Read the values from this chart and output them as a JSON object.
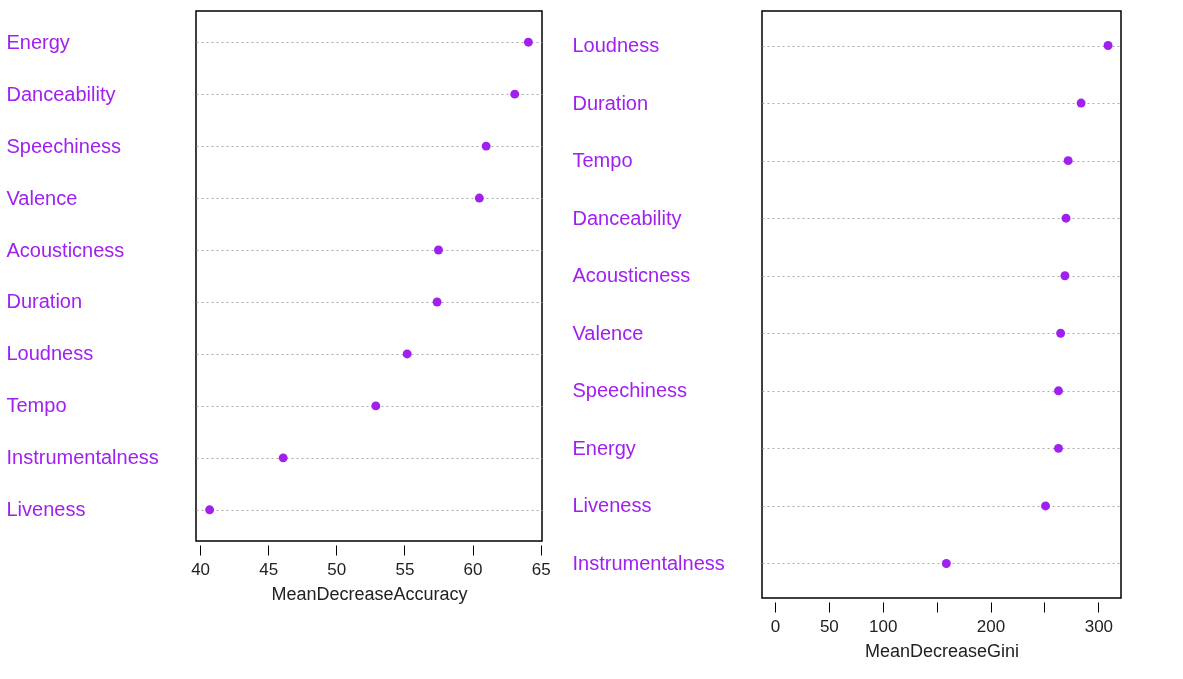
{
  "chart_data": [
    {
      "type": "scatter",
      "orientation": "horizontal",
      "xlabel": "MeanDecreaseAccuracy",
      "categories": [
        "Energy",
        "Danceability",
        "Speechiness",
        "Valence",
        "Acousticness",
        "Duration",
        "Loudness",
        "Tempo",
        "Instrumentalness",
        "Liveness"
      ],
      "series": [
        {
          "color": "#a020f0",
          "values": [
            64.1,
            63.1,
            61.0,
            60.5,
            57.5,
            57.4,
            55.2,
            52.9,
            46.1,
            40.7
          ]
        }
      ],
      "xlim": [
        39.7,
        65.1
      ],
      "xticks": [
        40,
        45,
        50,
        55,
        60,
        65
      ],
      "marker": "circle",
      "grid": "y",
      "line_style": "dotted"
    },
    {
      "type": "scatter",
      "orientation": "horizontal",
      "xlabel": "MeanDecreaseGini",
      "categories": [
        "Loudness",
        "Duration",
        "Tempo",
        "Danceability",
        "Acousticness",
        "Valence",
        "Speechiness",
        "Energy",
        "Liveness",
        "Instrumentalness"
      ],
      "series": [
        {
          "color": "#a020f0",
          "values": [
            309,
            284,
            272,
            270,
            269,
            265,
            263,
            263,
            251,
            159
          ]
        }
      ],
      "xlim": [
        -12,
        321
      ],
      "xticks": [
        0,
        50,
        100,
        {
          "value": 150,
          "label": null
        },
        200,
        {
          "value": 250,
          "label": null
        },
        300
      ],
      "marker": "circle",
      "grid": "y",
      "line_style": "dotted"
    }
  ]
}
